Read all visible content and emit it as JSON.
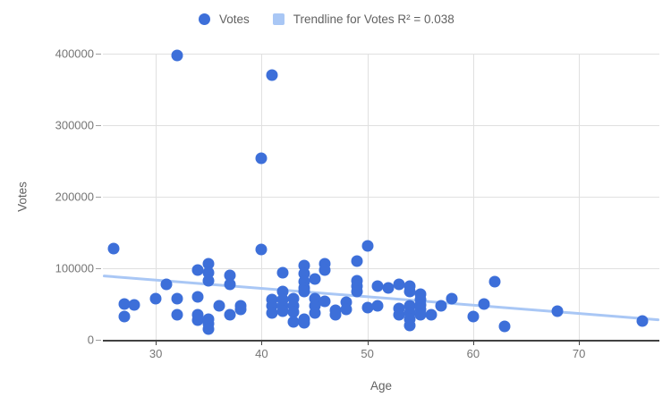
{
  "legend": {
    "votes_label": "Votes",
    "trendline_label": "Trendline for Votes R² = 0.038"
  },
  "axes": {
    "x_title": "Age",
    "y_title": "Votes"
  },
  "colors": {
    "point": "#3D6FD9",
    "trendline": "#A9C7F5",
    "gridline": "#E0E0E0",
    "axis_line": "#424242",
    "tick_text": "#757575",
    "axis_title_text": "#616161",
    "background": "#FFFFFF"
  },
  "chart_data": {
    "type": "scatter",
    "title": "",
    "xlabel": "Age",
    "ylabel": "Votes",
    "xlim": [
      25.0,
      77.6
    ],
    "ylim": [
      0,
      400000
    ],
    "x_ticks": [
      {
        "value": 30,
        "label": "30"
      },
      {
        "value": 40,
        "label": "40"
      },
      {
        "value": 50,
        "label": "50"
      },
      {
        "value": 60,
        "label": "60"
      },
      {
        "value": 70,
        "label": "70"
      }
    ],
    "y_ticks": [
      {
        "value": 0,
        "label": "0"
      },
      {
        "value": 100000,
        "label": "100000"
      },
      {
        "value": 200000,
        "label": "200000"
      },
      {
        "value": 300000,
        "label": "300000"
      },
      {
        "value": 400000,
        "label": "400000"
      }
    ],
    "grid": true,
    "legend_position": "top",
    "series": [
      {
        "name": "Votes",
        "color": "#3D6FD9",
        "points": [
          [
            26,
            127000
          ],
          [
            27,
            50000
          ],
          [
            27,
            33000
          ],
          [
            28,
            49000
          ],
          [
            30,
            58000
          ],
          [
            31,
            77000
          ],
          [
            32,
            58000
          ],
          [
            32,
            35000
          ],
          [
            32,
            398000
          ],
          [
            34,
            98000
          ],
          [
            34,
            60000
          ],
          [
            34,
            35000
          ],
          [
            34,
            27000
          ],
          [
            35,
            106000
          ],
          [
            35,
            94000
          ],
          [
            35,
            83000
          ],
          [
            35,
            29000
          ],
          [
            35,
            22000
          ],
          [
            35,
            15000
          ],
          [
            36,
            48000
          ],
          [
            37,
            90000
          ],
          [
            37,
            78000
          ],
          [
            37,
            35000
          ],
          [
            38,
            48000
          ],
          [
            38,
            42000
          ],
          [
            40,
            254000
          ],
          [
            40,
            126000
          ],
          [
            41,
            370000
          ],
          [
            41,
            56000
          ],
          [
            41,
            48000
          ],
          [
            41,
            38000
          ],
          [
            42,
            94000
          ],
          [
            42,
            67000
          ],
          [
            42,
            56000
          ],
          [
            42,
            48000
          ],
          [
            42,
            40000
          ],
          [
            43,
            58000
          ],
          [
            43,
            48000
          ],
          [
            43,
            39000
          ],
          [
            43,
            25000
          ],
          [
            44,
            104000
          ],
          [
            44,
            92000
          ],
          [
            44,
            81000
          ],
          [
            44,
            73000
          ],
          [
            44,
            67000
          ],
          [
            44,
            29000
          ],
          [
            44,
            24000
          ],
          [
            45,
            85000
          ],
          [
            45,
            58000
          ],
          [
            45,
            48000
          ],
          [
            45,
            38000
          ],
          [
            46,
            106000
          ],
          [
            46,
            98000
          ],
          [
            46,
            54000
          ],
          [
            47,
            41000
          ],
          [
            47,
            35000
          ],
          [
            48,
            52000
          ],
          [
            48,
            42000
          ],
          [
            49,
            110000
          ],
          [
            49,
            83000
          ],
          [
            49,
            75000
          ],
          [
            49,
            67000
          ],
          [
            50,
            131000
          ],
          [
            50,
            45000
          ],
          [
            51,
            75000
          ],
          [
            51,
            48000
          ],
          [
            52,
            72000
          ],
          [
            53,
            78000
          ],
          [
            53,
            44000
          ],
          [
            53,
            35000
          ],
          [
            54,
            75000
          ],
          [
            54,
            67000
          ],
          [
            54,
            47000
          ],
          [
            54,
            38000
          ],
          [
            54,
            29000
          ],
          [
            54,
            20000
          ],
          [
            55,
            64000
          ],
          [
            55,
            56000
          ],
          [
            55,
            49000
          ],
          [
            55,
            43000
          ],
          [
            55,
            35000
          ],
          [
            56,
            35000
          ],
          [
            57,
            48000
          ],
          [
            58,
            58000
          ],
          [
            60,
            33000
          ],
          [
            61,
            50000
          ],
          [
            62,
            81000
          ],
          [
            63,
            19000
          ],
          [
            68,
            40000
          ],
          [
            76,
            26000
          ]
        ]
      }
    ],
    "trendline": {
      "label": "Trendline for Votes R² = 0.038",
      "for_series": "Votes",
      "r_squared": 0.038,
      "color": "#A9C7F5",
      "start": [
        25.0,
        89000
      ],
      "end": [
        77.6,
        27500
      ]
    }
  }
}
